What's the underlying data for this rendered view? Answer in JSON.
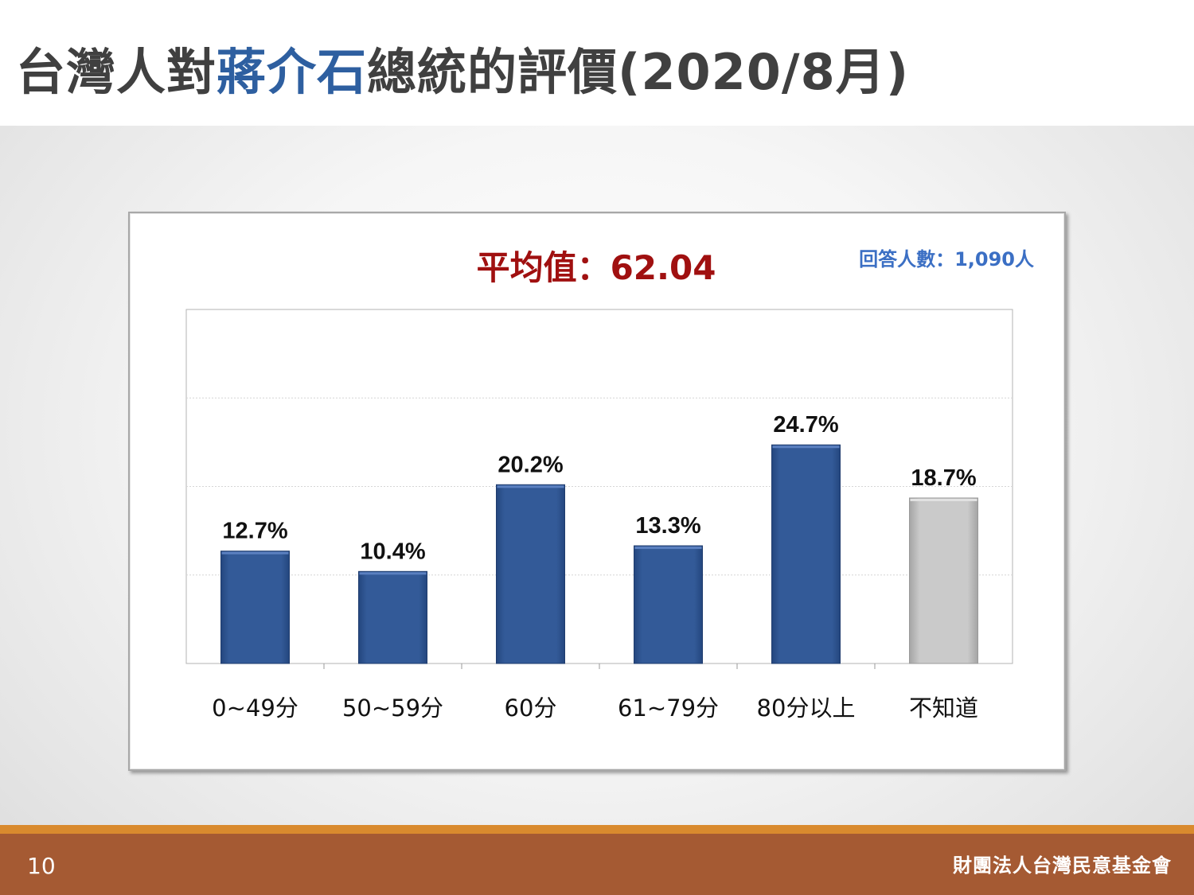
{
  "slide": {
    "title_prefix": "台灣人對",
    "title_highlight": "蔣介石",
    "title_suffix": "總統的評價(2020/8月)",
    "page_number": "10",
    "organization": "財團法人台灣民意基金會"
  },
  "chart_data": {
    "type": "bar",
    "title": "平均值：62.04",
    "sample_note": "回答人數：1,090人",
    "categories": [
      "0~49分",
      "50~59分",
      "60分",
      "61~79分",
      "80分以上",
      "不知道"
    ],
    "values": [
      12.7,
      10.4,
      20.2,
      13.3,
      24.7,
      18.7
    ],
    "value_labels": [
      "12.7%",
      "10.4%",
      "20.2%",
      "13.3%",
      "24.7%",
      "18.7%"
    ],
    "ylim": [
      0,
      40
    ],
    "grid": true,
    "colors": {
      "bar": "#335a98",
      "bar_unknown": "#c4c4c4",
      "title": "#a01010",
      "sample_note": "#3b6fc4",
      "title_highlight": "#2e5fa0"
    }
  }
}
